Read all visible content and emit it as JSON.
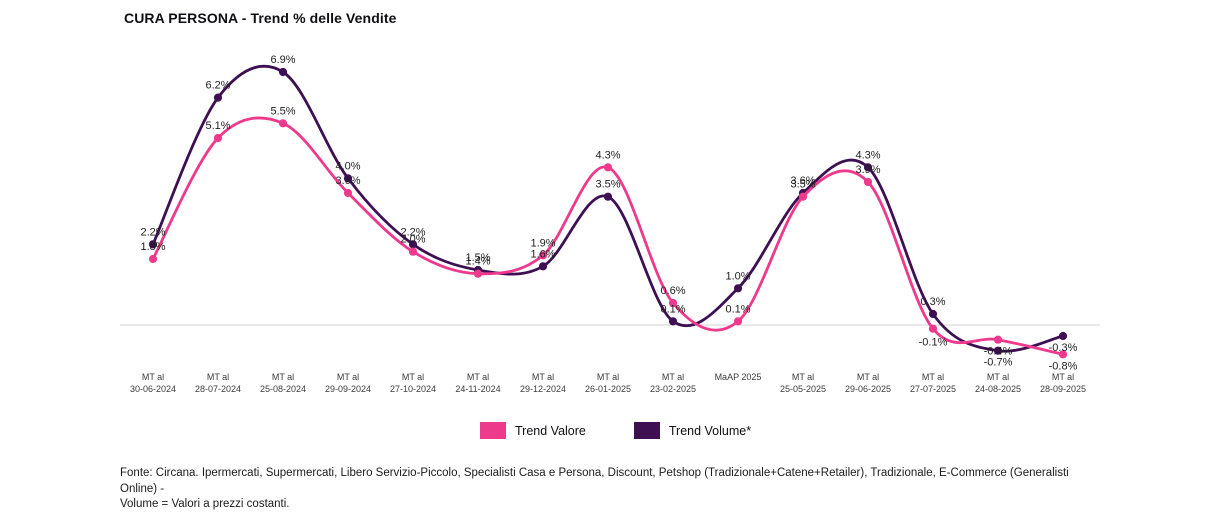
{
  "title": "CURA PERSONA - Trend % delle Vendite",
  "legend": {
    "items": [
      {
        "label": "Trend Valore",
        "color": "#ee3a8c"
      },
      {
        "label": "Trend Volume*",
        "color": "#3e1053"
      }
    ]
  },
  "footer": {
    "line1": "Fonte: Circana. Ipermercati, Supermercati, Libero Servizio-Piccolo, Specialisti Casa e Persona, Discount, Petshop (Tradizionale+Catene+Retailer), Tradizionale, E-Commerce (Generalisti Online) -",
    "line2": "Volume = Valori a prezzi costanti."
  },
  "chart_data": {
    "type": "line",
    "title": "CURA PERSONA - Trend % delle Vendite",
    "categories": [
      "MT al\n30-06-2024",
      "MT al\n28-07-2024",
      "MT al\n25-08-2024",
      "MT al\n29-09-2024",
      "MT al\n27-10-2024",
      "MT al\n24-11-2024",
      "MT al\n29-12-2024",
      "MT al\n26-01-2025",
      "MT al\n23-02-2025",
      "MaAP 2025",
      "MT al\n25-05-2025",
      "MT al\n29-06-2025",
      "MT al\n27-07-2025",
      "MT al\n24-08-2025",
      "MT al\n28-09-2025"
    ],
    "series": [
      {
        "name": "Trend Valore",
        "color": "#ee3a8c",
        "values": [
          1.8,
          5.1,
          5.5,
          3.6,
          2.0,
          1.4,
          1.9,
          4.3,
          0.6,
          0.1,
          3.5,
          3.9,
          -0.1,
          -0.4,
          -0.8
        ]
      },
      {
        "name": "Trend Volume*",
        "color": "#3e1053",
        "values": [
          2.2,
          6.2,
          6.9,
          4.0,
          2.2,
          1.5,
          1.6,
          3.5,
          0.1,
          1.0,
          3.6,
          4.3,
          0.3,
          -0.7,
          -0.3
        ]
      }
    ],
    "xlabel": "",
    "ylabel": "",
    "ylim": [
      -1.5,
      7.5
    ],
    "grid": false,
    "baseline_value": 0,
    "legend_position": "bottom",
    "label_format": "one-decimal-percent"
  }
}
